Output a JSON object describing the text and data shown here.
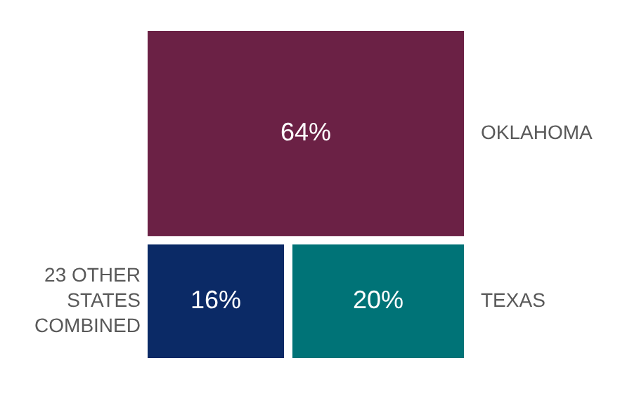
{
  "chart_data": {
    "type": "other",
    "categories": [
      "OKLAHOMA",
      "23 OTHER STATES COMBINED",
      "TEXAS"
    ],
    "values": [
      64,
      16,
      20
    ],
    "value_labels": [
      "64%",
      "16%",
      "20%"
    ],
    "colors": [
      "#6b2145",
      "#0b2a66",
      "#007377"
    ]
  }
}
